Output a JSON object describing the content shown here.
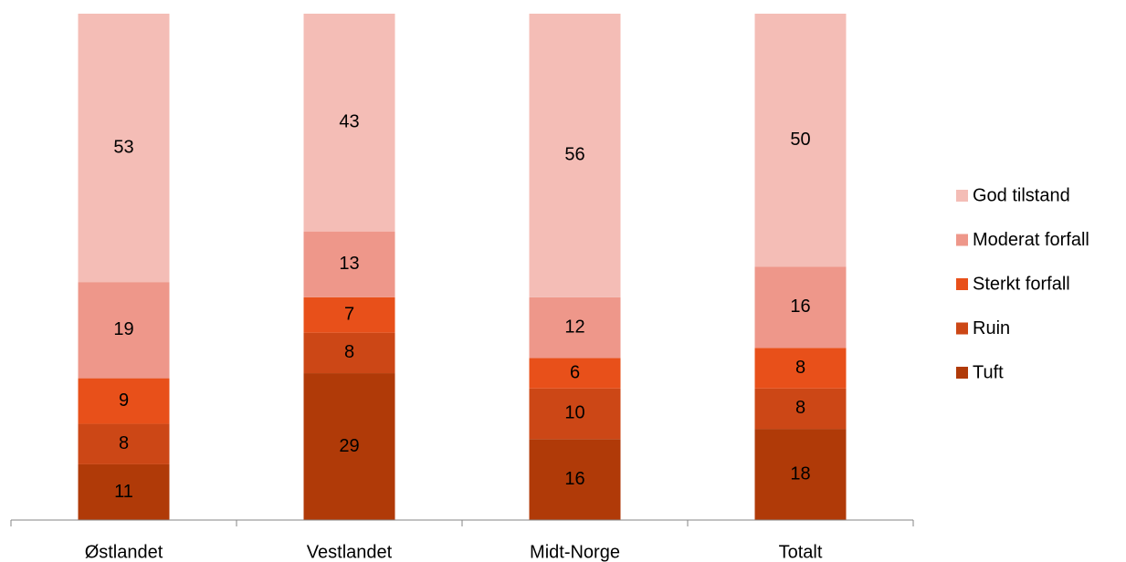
{
  "chart_data": {
    "type": "stacked_bar",
    "categories": [
      "Østlandet",
      "Vestlandet",
      "Midt-Norge",
      "Totalt"
    ],
    "series": [
      {
        "name": "Tuft",
        "color": "#b03a08",
        "values": [
          11,
          29,
          16,
          18
        ]
      },
      {
        "name": "Ruin",
        "color": "#cc4716",
        "values": [
          8,
          8,
          10,
          8
        ]
      },
      {
        "name": "Sterkt forfall",
        "color": "#e8501a",
        "values": [
          9,
          7,
          6,
          8
        ]
      },
      {
        "name": "Moderat forfall",
        "color": "#ee978a",
        "values": [
          19,
          13,
          12,
          16
        ]
      },
      {
        "name": "God tilstand",
        "color": "#f4bdb6",
        "values": [
          53,
          43,
          56,
          50
        ]
      }
    ],
    "ylim": [
      0,
      100
    ],
    "legend": "right"
  }
}
